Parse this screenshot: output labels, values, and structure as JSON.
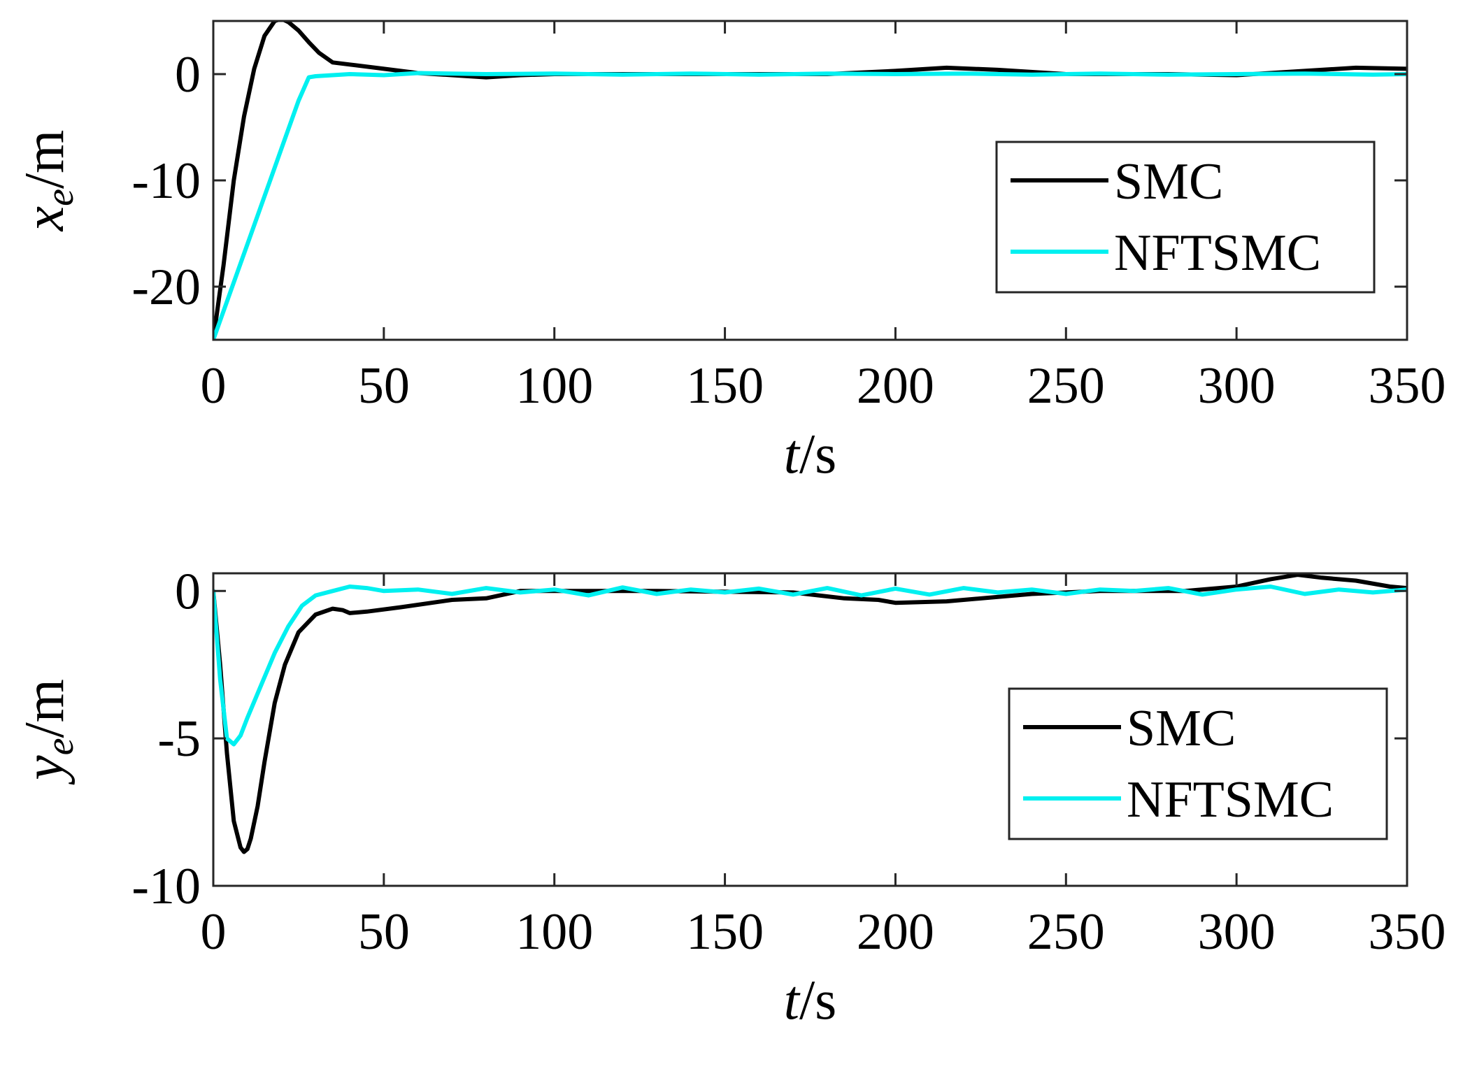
{
  "chart_data": [
    {
      "type": "line",
      "ylabel_var": "x",
      "ylabel_sub": "e",
      "ylabel_unit": "/m",
      "xlabel_var": "t",
      "xlabel_unit": "/s",
      "xlim": [
        0,
        350
      ],
      "ylim": [
        -25,
        5
      ],
      "xticks": [
        0,
        50,
        100,
        150,
        200,
        250,
        300,
        350
      ],
      "xtick_labels": [
        "0",
        "50",
        "100",
        "150",
        "200",
        "250",
        "300",
        "350"
      ],
      "yticks": [
        0,
        -10,
        -20
      ],
      "ytick_labels": [
        "0",
        "-10",
        "-20"
      ],
      "legend_location": "center-right",
      "series": [
        {
          "name": "SMC",
          "color": "#000000",
          "x": [
            0,
            3,
            6,
            9,
            12,
            15,
            18,
            20,
            22,
            25,
            28,
            31,
            35,
            40,
            50,
            60,
            70,
            80,
            90,
            100,
            120,
            150,
            180,
            200,
            215,
            230,
            250,
            280,
            300,
            320,
            335,
            350
          ],
          "y": [
            -25,
            -18,
            -10,
            -4,
            0.5,
            3.6,
            5.0,
            5.2,
            4.9,
            4.1,
            3.0,
            2.0,
            1.1,
            0.9,
            0.5,
            0.1,
            -0.1,
            -0.3,
            -0.1,
            0,
            0,
            0,
            0,
            0.3,
            0.6,
            0.4,
            0,
            0,
            -0.1,
            0.3,
            0.6,
            0.5
          ]
        },
        {
          "name": "NFTSMC",
          "color": "#00f0f0",
          "x": [
            0,
            5,
            10,
            15,
            20,
            25,
            28,
            30,
            40,
            50,
            60,
            80,
            100,
            120,
            140,
            160,
            180,
            200,
            220,
            240,
            260,
            280,
            300,
            320,
            340,
            350
          ],
          "y": [
            -25,
            -20.5,
            -16,
            -11.5,
            -7,
            -2.5,
            -0.3,
            -0.2,
            0,
            -0.1,
            0.1,
            0,
            0.05,
            -0.05,
            0.05,
            -0.05,
            0.05,
            0,
            0.05,
            -0.05,
            0.05,
            -0.05,
            0,
            0.05,
            -0.05,
            0
          ]
        }
      ]
    },
    {
      "type": "line",
      "ylabel_var": "y",
      "ylabel_sub": "e",
      "ylabel_unit": "/m",
      "xlabel_var": "t",
      "xlabel_unit": "/s",
      "xlim": [
        0,
        350
      ],
      "ylim": [
        -10,
        0.6
      ],
      "xticks": [
        0,
        50,
        100,
        150,
        200,
        250,
        300,
        350
      ],
      "xtick_labels": [
        "0",
        "50",
        "100",
        "150",
        "200",
        "250",
        "300",
        "350"
      ],
      "yticks": [
        0,
        -5,
        -10
      ],
      "ytick_labels": [
        "0",
        "-5",
        "-10"
      ],
      "legend_location": "lower-right",
      "series": [
        {
          "name": "SMC",
          "color": "#000000",
          "x": [
            0,
            2,
            4,
            6,
            8,
            9,
            10,
            11,
            13,
            15,
            18,
            21,
            25,
            30,
            35,
            38,
            40,
            45,
            55,
            70,
            80,
            90,
            100,
            130,
            170,
            185,
            195,
            200,
            215,
            240,
            260,
            285,
            300,
            310,
            318,
            325,
            335,
            345,
            350
          ],
          "y": [
            0,
            -2.5,
            -5.5,
            -7.8,
            -8.7,
            -8.85,
            -8.75,
            -8.4,
            -7.3,
            -5.8,
            -3.8,
            -2.5,
            -1.4,
            -0.8,
            -0.6,
            -0.65,
            -0.75,
            -0.7,
            -0.55,
            -0.3,
            -0.25,
            0,
            0,
            0,
            -0.05,
            -0.25,
            -0.3,
            -0.4,
            -0.35,
            -0.1,
            0,
            0,
            0.15,
            0.4,
            0.55,
            0.45,
            0.35,
            0.15,
            0.1
          ]
        },
        {
          "name": "NFTSMC",
          "color": "#00f0f0",
          "x": [
            0,
            2,
            4,
            6,
            8,
            10,
            14,
            18,
            22,
            26,
            30,
            35,
            40,
            45,
            50,
            60,
            70,
            80,
            90,
            100,
            110,
            120,
            130,
            140,
            150,
            160,
            170,
            180,
            190,
            200,
            210,
            220,
            230,
            240,
            250,
            260,
            270,
            280,
            290,
            300,
            310,
            320,
            330,
            340,
            350
          ],
          "y": [
            0,
            -3,
            -5.0,
            -5.2,
            -4.9,
            -4.3,
            -3.2,
            -2.1,
            -1.2,
            -0.5,
            -0.15,
            0,
            0.15,
            0.1,
            0,
            0.05,
            -0.1,
            0.1,
            -0.05,
            0.05,
            -0.15,
            0.12,
            -0.1,
            0.05,
            -0.05,
            0.08,
            -0.12,
            0.1,
            -0.15,
            0.08,
            -0.12,
            0.1,
            -0.05,
            0.05,
            -0.1,
            0.05,
            0,
            0.1,
            -0.12,
            0.05,
            0.15,
            -0.1,
            0.05,
            -0.05,
            0.05
          ]
        }
      ]
    }
  ]
}
